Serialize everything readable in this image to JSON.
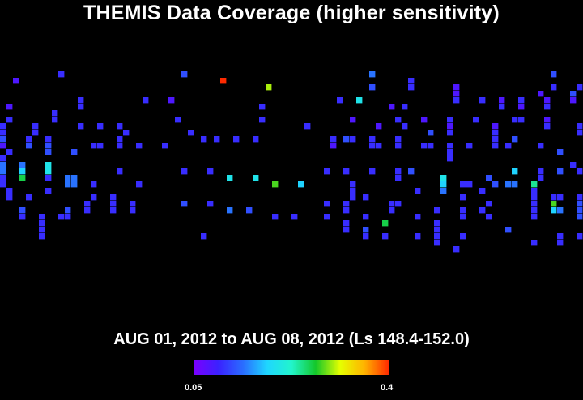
{
  "title": "THEMIS Data Coverage (higher sensitivity)",
  "subtitle": "AUG 01, 2012 to AUG 08, 2012 (Ls 148.4-152.0)",
  "colorbar": {
    "min_label": "0.05",
    "max_label": "0.4",
    "stops": [
      "#7a00ff",
      "#3a22ff",
      "#2a6dff",
      "#1fd6ff",
      "#22f5cc",
      "#14c72a",
      "#e6ff00",
      "#ffb300",
      "#ff2a00"
    ]
  },
  "chart_data": {
    "type": "heatmap",
    "title": "THEMIS Data Coverage (higher sensitivity)",
    "subtitle": "AUG 01, 2012 to AUG 08, 2012 (Ls 148.4-152.0)",
    "color_scale": {
      "min": 0.05,
      "max": 0.4
    },
    "grid": {
      "cols": 90,
      "rows": 34
    },
    "cells": [
      [
        2,
        2,
        0.08
      ],
      [
        9,
        1,
        0.1
      ],
      [
        28,
        1,
        0.12
      ],
      [
        34,
        2,
        0.4
      ],
      [
        41,
        3,
        0.3
      ],
      [
        57,
        1,
        0.14
      ],
      [
        63,
        2,
        0.1
      ],
      [
        85,
        1,
        0.12
      ],
      [
        89,
        3,
        0.1
      ],
      [
        1,
        6,
        0.08
      ],
      [
        12,
        5,
        0.1
      ],
      [
        12,
        6,
        0.1
      ],
      [
        22,
        5,
        0.1
      ],
      [
        26,
        5,
        0.08
      ],
      [
        40,
        6,
        0.1
      ],
      [
        52,
        5,
        0.1
      ],
      [
        55,
        5,
        0.2
      ],
      [
        60,
        6,
        0.08
      ],
      [
        62,
        6,
        0.1
      ],
      [
        70,
        3,
        0.08
      ],
      [
        70,
        4,
        0.08
      ],
      [
        70,
        5,
        0.1
      ],
      [
        74,
        5,
        0.1
      ],
      [
        77,
        6,
        0.1
      ],
      [
        77,
        5,
        0.08
      ],
      [
        80,
        5,
        0.1
      ],
      [
        80,
        6,
        0.08
      ],
      [
        84,
        5,
        0.08
      ],
      [
        84,
        6,
        0.1
      ],
      [
        88,
        4,
        0.12
      ],
      [
        88,
        5,
        0.08
      ],
      [
        63,
        3,
        0.1
      ],
      [
        57,
        3,
        0.12
      ],
      [
        85,
        3,
        0.1
      ],
      [
        83,
        4,
        0.08
      ],
      [
        0,
        9,
        0.1
      ],
      [
        0,
        10,
        0.1
      ],
      [
        0,
        11,
        0.12
      ],
      [
        0,
        12,
        0.08
      ],
      [
        1,
        8,
        0.1
      ],
      [
        5,
        9,
        0.1
      ],
      [
        5,
        10,
        0.1
      ],
      [
        8,
        8,
        0.1
      ],
      [
        8,
        7,
        0.1
      ],
      [
        12,
        9,
        0.1
      ],
      [
        15,
        9,
        0.1
      ],
      [
        18,
        9,
        0.1
      ],
      [
        19,
        10,
        0.1
      ],
      [
        27,
        8,
        0.1
      ],
      [
        31,
        11,
        0.1
      ],
      [
        40,
        8,
        0.1
      ],
      [
        47,
        9,
        0.1
      ],
      [
        51,
        11,
        0.1
      ],
      [
        54,
        8,
        0.08
      ],
      [
        58,
        9,
        0.08
      ],
      [
        61,
        8,
        0.1
      ],
      [
        62,
        9,
        0.1
      ],
      [
        65,
        8,
        0.08
      ],
      [
        69,
        8,
        0.1
      ],
      [
        69,
        9,
        0.08
      ],
      [
        69,
        10,
        0.1
      ],
      [
        73,
        8,
        0.1
      ],
      [
        76,
        9,
        0.08
      ],
      [
        76,
        10,
        0.1
      ],
      [
        79,
        8,
        0.1
      ],
      [
        80,
        8,
        0.1
      ],
      [
        84,
        8,
        0.08
      ],
      [
        84,
        9,
        0.1
      ],
      [
        89,
        9,
        0.1
      ],
      [
        89,
        10,
        0.1
      ],
      [
        1,
        13,
        0.1
      ],
      [
        4,
        11,
        0.1
      ],
      [
        4,
        12,
        0.12
      ],
      [
        7,
        11,
        0.1
      ],
      [
        7,
        12,
        0.12
      ],
      [
        7,
        13,
        0.12
      ],
      [
        11,
        13,
        0.12
      ],
      [
        14,
        12,
        0.1
      ],
      [
        15,
        12,
        0.1
      ],
      [
        18,
        11,
        0.1
      ],
      [
        18,
        12,
        0.1
      ],
      [
        21,
        12,
        0.1
      ],
      [
        25,
        12,
        0.1
      ],
      [
        29,
        10,
        0.1
      ],
      [
        33,
        11,
        0.1
      ],
      [
        36,
        11,
        0.1
      ],
      [
        39,
        11,
        0.1
      ],
      [
        51,
        12,
        0.08
      ],
      [
        53,
        11,
        0.12
      ],
      [
        54,
        11,
        0.1
      ],
      [
        57,
        11,
        0.1
      ],
      [
        57,
        12,
        0.1
      ],
      [
        58,
        12,
        0.1
      ],
      [
        61,
        11,
        0.1
      ],
      [
        61,
        12,
        0.1
      ],
      [
        66,
        10,
        0.12
      ],
      [
        69,
        12,
        0.1
      ],
      [
        72,
        12,
        0.1
      ],
      [
        76,
        11,
        0.1
      ],
      [
        76,
        12,
        0.1
      ],
      [
        78,
        12,
        0.1
      ],
      [
        79,
        11,
        0.12
      ],
      [
        83,
        12,
        0.1
      ],
      [
        86,
        13,
        0.12
      ],
      [
        0,
        14,
        0.1
      ],
      [
        0,
        15,
        0.14
      ],
      [
        0,
        16,
        0.14
      ],
      [
        0,
        17,
        0.1
      ],
      [
        3,
        15,
        0.14
      ],
      [
        3,
        16,
        0.18
      ],
      [
        3,
        17,
        0.26
      ],
      [
        7,
        15,
        0.2
      ],
      [
        7,
        16,
        0.2
      ],
      [
        7,
        17,
        0.1
      ],
      [
        10,
        17,
        0.14
      ],
      [
        10,
        18,
        0.14
      ],
      [
        11,
        17,
        0.14
      ],
      [
        11,
        18,
        0.14
      ],
      [
        14,
        18,
        0.1
      ],
      [
        18,
        16,
        0.1
      ],
      [
        21,
        18,
        0.1
      ],
      [
        28,
        16,
        0.1
      ],
      [
        32,
        16,
        0.1
      ],
      [
        35,
        17,
        0.2
      ],
      [
        39,
        17,
        0.2
      ],
      [
        42,
        18,
        0.28
      ],
      [
        46,
        18,
        0.18
      ],
      [
        50,
        16,
        0.1
      ],
      [
        53,
        16,
        0.1
      ],
      [
        57,
        16,
        0.1
      ],
      [
        61,
        16,
        0.1
      ],
      [
        61,
        17,
        0.1
      ],
      [
        63,
        16,
        0.12
      ],
      [
        68,
        17,
        0.2
      ],
      [
        68,
        18,
        0.18
      ],
      [
        68,
        19,
        0.14
      ],
      [
        71,
        18,
        0.1
      ],
      [
        72,
        18,
        0.1
      ],
      [
        75,
        17,
        0.12
      ],
      [
        76,
        18,
        0.12
      ],
      [
        78,
        18,
        0.14
      ],
      [
        79,
        18,
        0.14
      ],
      [
        79,
        16,
        0.18
      ],
      [
        82,
        18,
        0.24
      ],
      [
        83,
        16,
        0.1
      ],
      [
        83,
        17,
        0.1
      ],
      [
        86,
        16,
        0.12
      ],
      [
        88,
        15,
        0.1
      ],
      [
        89,
        16,
        0.1
      ],
      [
        3,
        23,
        0.1
      ],
      [
        3,
        22,
        0.12
      ],
      [
        6,
        23,
        0.1
      ],
      [
        6,
        24,
        0.1
      ],
      [
        6,
        25,
        0.1
      ],
      [
        9,
        23,
        0.1
      ],
      [
        10,
        22,
        0.12
      ],
      [
        10,
        23,
        0.1
      ],
      [
        13,
        21,
        0.1
      ],
      [
        13,
        22,
        0.1
      ],
      [
        17,
        21,
        0.1
      ],
      [
        17,
        22,
        0.1
      ],
      [
        20,
        21,
        0.1
      ],
      [
        20,
        22,
        0.1
      ],
      [
        28,
        21,
        0.12
      ],
      [
        32,
        21,
        0.1
      ],
      [
        35,
        22,
        0.14
      ],
      [
        38,
        22,
        0.12
      ],
      [
        42,
        23,
        0.1
      ],
      [
        45,
        23,
        0.1
      ],
      [
        50,
        21,
        0.1
      ],
      [
        50,
        23,
        0.1
      ],
      [
        53,
        21,
        0.1
      ],
      [
        53,
        22,
        0.1
      ],
      [
        53,
        24,
        0.1
      ],
      [
        56,
        23,
        0.1
      ],
      [
        56,
        25,
        0.12
      ],
      [
        59,
        24,
        0.26
      ],
      [
        60,
        21,
        0.1
      ],
      [
        60,
        22,
        0.1
      ],
      [
        61,
        21,
        0.1
      ],
      [
        64,
        23,
        0.1
      ],
      [
        67,
        22,
        0.1
      ],
      [
        67,
        24,
        0.1
      ],
      [
        67,
        25,
        0.1
      ],
      [
        67,
        26,
        0.1
      ],
      [
        71,
        23,
        0.1
      ],
      [
        71,
        22,
        0.1
      ],
      [
        74,
        22,
        0.1
      ],
      [
        75,
        23,
        0.1
      ],
      [
        75,
        21,
        0.1
      ],
      [
        82,
        21,
        0.1
      ],
      [
        82,
        22,
        0.1
      ],
      [
        82,
        23,
        0.1
      ],
      [
        85,
        21,
        0.28
      ],
      [
        85,
        22,
        0.18
      ],
      [
        86,
        22,
        0.14
      ],
      [
        89,
        21,
        0.12
      ],
      [
        89,
        22,
        0.12
      ],
      [
        89,
        23,
        0.12
      ],
      [
        1,
        20,
        0.1
      ],
      [
        1,
        19,
        0.1
      ],
      [
        0,
        18,
        0.1
      ],
      [
        4,
        20,
        0.1
      ],
      [
        7,
        19,
        0.1
      ],
      [
        14,
        20,
        0.1
      ],
      [
        17,
        20,
        0.1
      ],
      [
        54,
        19,
        0.1
      ],
      [
        54,
        20,
        0.1
      ],
      [
        54,
        18,
        0.1
      ],
      [
        56,
        20,
        0.1
      ],
      [
        64,
        19,
        0.1
      ],
      [
        71,
        20,
        0.1
      ],
      [
        74,
        19,
        0.1
      ],
      [
        82,
        20,
        0.1
      ],
      [
        82,
        19,
        0.1
      ],
      [
        85,
        20,
        0.1
      ],
      [
        86,
        20,
        0.1
      ],
      [
        89,
        20,
        0.1
      ],
      [
        65,
        12,
        0.1
      ],
      [
        66,
        12,
        0.1
      ],
      [
        69,
        13,
        0.1
      ],
      [
        69,
        14,
        0.1
      ],
      [
        31,
        26,
        0.1
      ],
      [
        56,
        26,
        0.1
      ],
      [
        59,
        26,
        0.1
      ],
      [
        64,
        26,
        0.1
      ],
      [
        70,
        28,
        0.1
      ],
      [
        71,
        26,
        0.1
      ],
      [
        78,
        25,
        0.12
      ],
      [
        82,
        27,
        0.1
      ],
      [
        86,
        26,
        0.1
      ],
      [
        86,
        27,
        0.1
      ],
      [
        89,
        26,
        0.1
      ],
      [
        67,
        27,
        0.1
      ],
      [
        6,
        26,
        0.1
      ],
      [
        53,
        25,
        0.1
      ]
    ]
  }
}
